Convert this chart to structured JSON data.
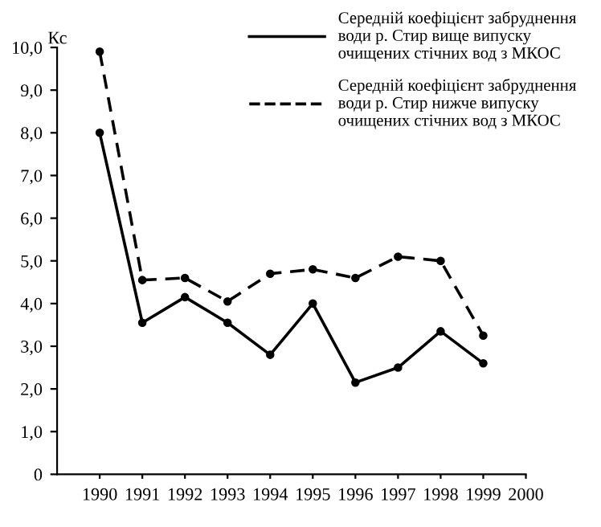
{
  "chart_data": {
    "type": "line",
    "ylabel": "Кс",
    "x": [
      1990,
      1991,
      1992,
      1993,
      1994,
      1995,
      1996,
      1997,
      1998,
      1999
    ],
    "series": [
      {
        "name": "Середній коефіцієнт забруднення\nводи р. Стир вище випуску\nочищених стічних вод з МКОС",
        "color": "#000000",
        "line_style": "solid",
        "values": [
          8.0,
          3.55,
          4.15,
          3.55,
          2.8,
          4.0,
          2.15,
          2.5,
          3.35,
          2.6
        ]
      },
      {
        "name": "Середній коефіцієнт забруднення\nводи р. Стир нижче випуску\nочищених стічних вод з МКОС",
        "color": "#000000",
        "line_style": "dashed",
        "values": [
          9.9,
          4.55,
          4.6,
          4.05,
          4.7,
          4.8,
          4.6,
          5.1,
          5.0,
          3.25
        ]
      }
    ],
    "xlim": [
      1989,
      2000
    ],
    "xticks": [
      1990,
      1991,
      1992,
      1993,
      1994,
      1995,
      1996,
      1997,
      1998,
      1999,
      2000
    ],
    "ylim": [
      0,
      10
    ],
    "yticks": [
      {
        "value": 0,
        "label": "0"
      },
      {
        "value": 1,
        "label": "1,0"
      },
      {
        "value": 2,
        "label": "2,0"
      },
      {
        "value": 3,
        "label": "3,0"
      },
      {
        "value": 4,
        "label": "4,0"
      },
      {
        "value": 5,
        "label": "5,0"
      },
      {
        "value": 6,
        "label": "6,0"
      },
      {
        "value": 7,
        "label": "7,0"
      },
      {
        "value": 8,
        "label": "8,0"
      },
      {
        "value": 9,
        "label": "9,0"
      },
      {
        "value": 10,
        "label": "10,0"
      }
    ],
    "grid": false,
    "legend": "top right",
    "marker": "circle"
  }
}
